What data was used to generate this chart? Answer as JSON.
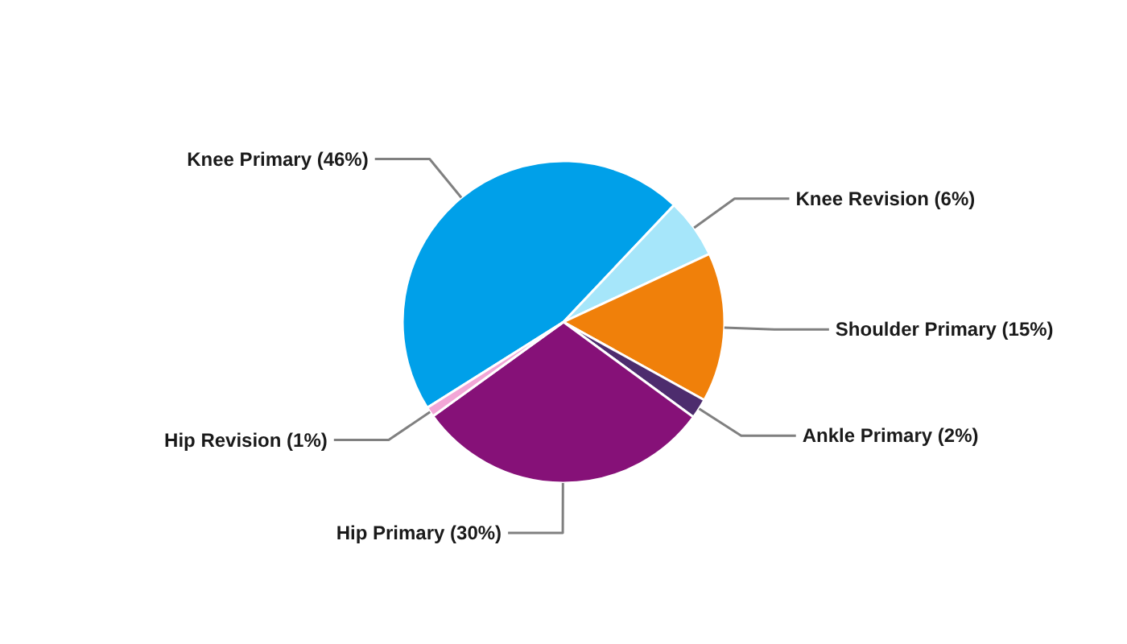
{
  "chart_data": {
    "type": "pie",
    "categories": [
      "Knee Primary",
      "Knee Revision",
      "Shoulder Primary",
      "Ankle Primary",
      "Hip Primary",
      "Hip Revision"
    ],
    "values": [
      46,
      6,
      15,
      2,
      30,
      1
    ],
    "colors": [
      "#00a0e9",
      "#a6e6fa",
      "#f0800a",
      "#4d2c6e",
      "#861178",
      "#f2a6d6"
    ],
    "value_labels": [
      "(46%)",
      "(6%)",
      "(15%)",
      "(2%)",
      "(30%)",
      "(1%)"
    ]
  }
}
